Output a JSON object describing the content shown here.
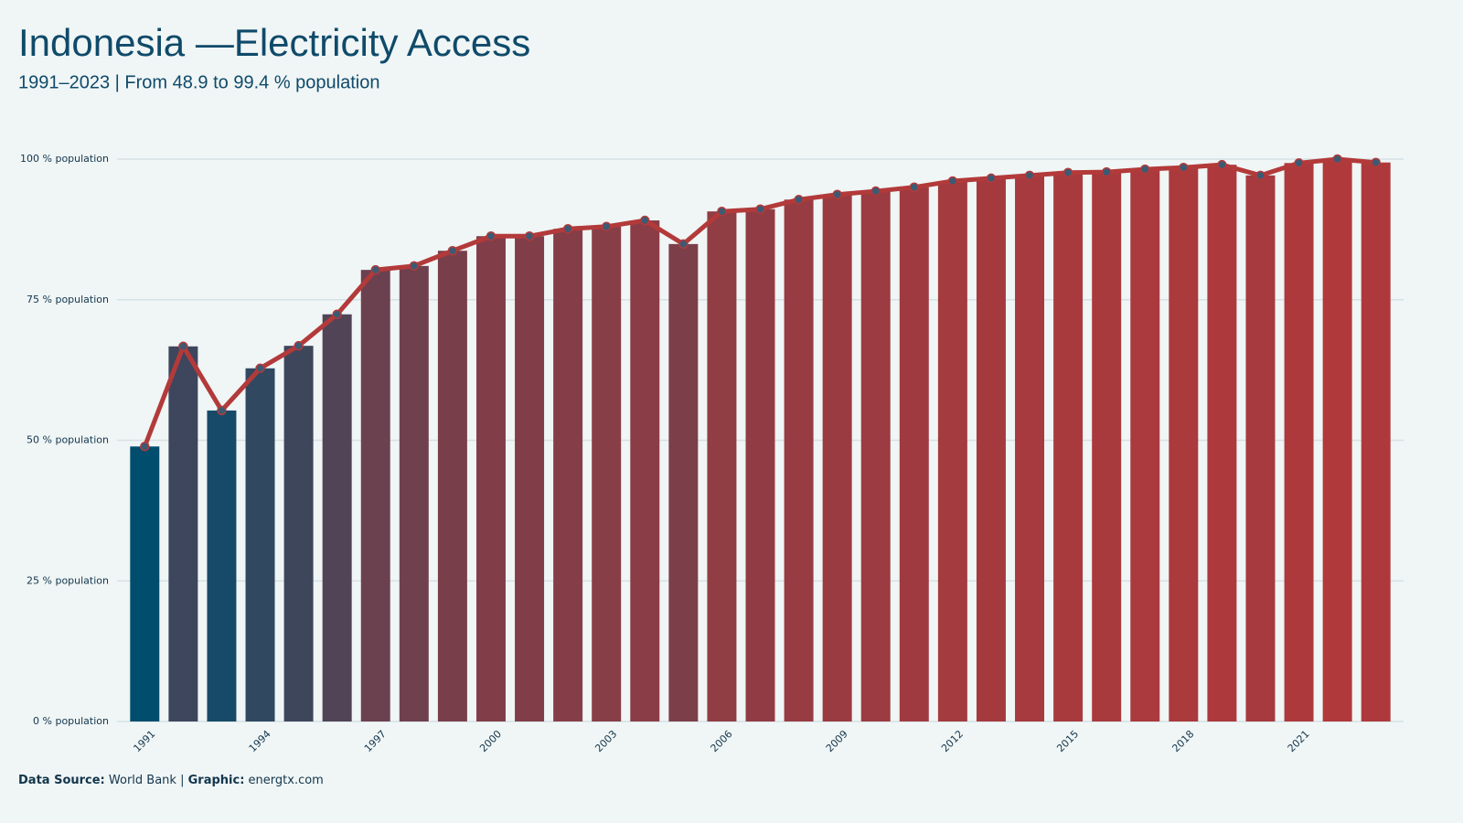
{
  "chart_data": {
    "type": "bar_line",
    "title": "Indonesia —Electricity Access",
    "subtitle": "1991–2023 | From 48.9 to 99.4 % population",
    "x": [
      1991,
      1992,
      1993,
      1994,
      1995,
      1996,
      1997,
      1998,
      1999,
      2000,
      2001,
      2002,
      2003,
      2004,
      2005,
      2006,
      2007,
      2008,
      2009,
      2010,
      2011,
      2012,
      2013,
      2014,
      2015,
      2016,
      2017,
      2018,
      2019,
      2020,
      2021,
      2022,
      2023
    ],
    "values": [
      48.9,
      66.7,
      55.3,
      62.8,
      66.8,
      72.4,
      80.3,
      81.0,
      83.7,
      86.3,
      86.3,
      87.6,
      88.0,
      89.1,
      84.9,
      90.7,
      91.1,
      92.8,
      93.7,
      94.3,
      95.0,
      96.1,
      96.6,
      97.1,
      97.6,
      97.7,
      98.2,
      98.5,
      99.0,
      97.1,
      99.3,
      100.0,
      99.4
    ],
    "color_scale": {
      "low": "#004d6e",
      "high": "#b0393b"
    },
    "line_color": "#b33a3a",
    "marker_color": "#3d5a73",
    "xlim": [
      1990.28,
      2023.72
    ],
    "xticks": [
      1991,
      1994,
      1997,
      2000,
      2003,
      2006,
      2009,
      2012,
      2015,
      2018,
      2021
    ],
    "ylim": [
      0,
      100
    ],
    "yticks": [
      {
        "value": 0,
        "label": "0 % population"
      },
      {
        "value": 25,
        "label": "25 % population"
      },
      {
        "value": 50,
        "label": "50 % population"
      },
      {
        "value": 75,
        "label": "75 % population"
      },
      {
        "value": 100,
        "label": "100 % population"
      }
    ],
    "grid": true,
    "footer": {
      "source_label": "Data Source:",
      "source": "World Bank",
      "separator": "|",
      "graphic_label": "Graphic:",
      "graphic": "energtx.com"
    }
  }
}
